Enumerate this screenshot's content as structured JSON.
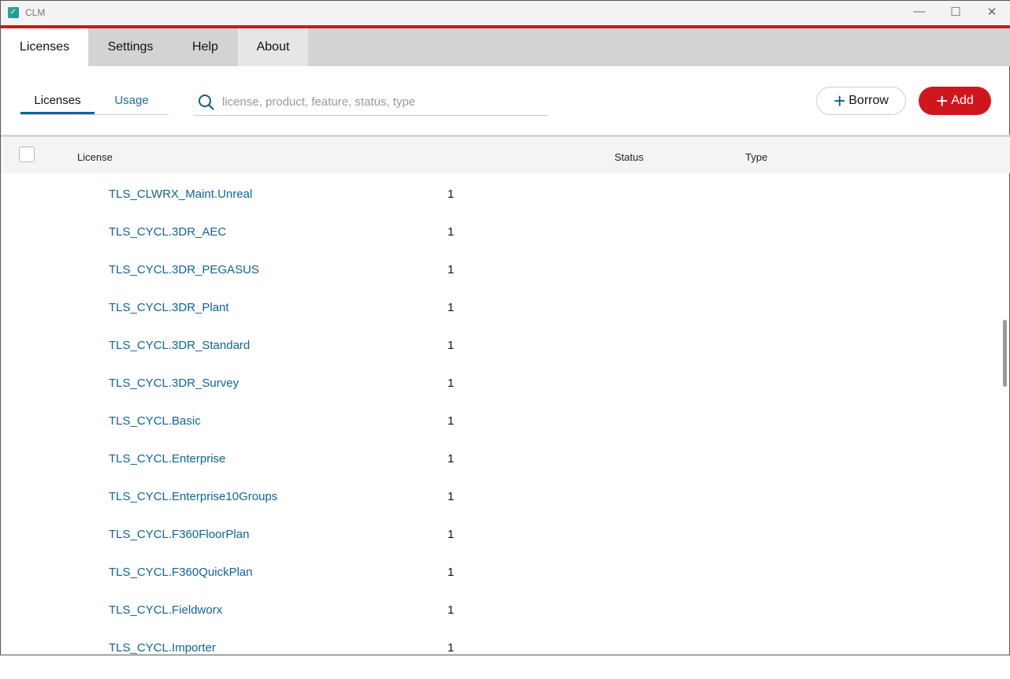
{
  "window": {
    "title": "CLM",
    "controls": [
      "minimize",
      "maximize",
      "close"
    ]
  },
  "menu": {
    "tabs": [
      {
        "label": "Licenses",
        "active": true
      },
      {
        "label": "Settings"
      },
      {
        "label": "Help"
      },
      {
        "label": "About"
      }
    ]
  },
  "subtabs": [
    {
      "label": "Licenses",
      "active": true
    },
    {
      "label": "Usage"
    }
  ],
  "search": {
    "placeholder": "license, product, feature, status, type",
    "value": ""
  },
  "buttons": {
    "borrow": "Borrow",
    "add": "Add"
  },
  "colors": {
    "accent": "#d0161d",
    "link": "#0f6593"
  },
  "table": {
    "headers": {
      "license": "License",
      "status": "Status",
      "type": "Type"
    },
    "rows": [
      {
        "name": "TLS_CLWRX_Maint.Unreal",
        "count": "1"
      },
      {
        "name": "TLS_CYCL.3DR_AEC",
        "count": "1"
      },
      {
        "name": "TLS_CYCL.3DR_PEGASUS",
        "count": "1"
      },
      {
        "name": "TLS_CYCL.3DR_Plant",
        "count": "1"
      },
      {
        "name": "TLS_CYCL.3DR_Standard",
        "count": "1"
      },
      {
        "name": "TLS_CYCL.3DR_Survey",
        "count": "1"
      },
      {
        "name": "TLS_CYCL.Basic",
        "count": "1"
      },
      {
        "name": "TLS_CYCL.Enterprise",
        "count": "1"
      },
      {
        "name": "TLS_CYCL.Enterprise10Groups",
        "count": "1"
      },
      {
        "name": "TLS_CYCL.F360FloorPlan",
        "count": "1"
      },
      {
        "name": "TLS_CYCL.F360QuickPlan",
        "count": "1"
      },
      {
        "name": "TLS_CYCL.Fieldworx",
        "count": "1"
      },
      {
        "name": "TLS_CYCL.Importer",
        "count": "1"
      }
    ]
  }
}
